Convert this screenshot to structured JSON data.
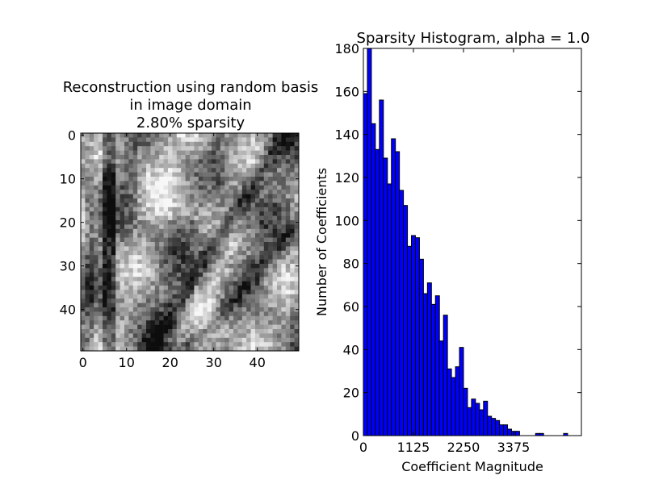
{
  "chart_data": [
    {
      "type": "heatmap",
      "title_lines": [
        "Reconstruction using random basis",
        "in image domain",
        "2.80% sparsity"
      ],
      "xticks": [
        0,
        10,
        20,
        30,
        40
      ],
      "yticks": [
        0,
        10,
        20,
        30,
        40
      ],
      "xlim": [
        -0.5,
        49.5
      ],
      "ylim": [
        49.5,
        -0.5
      ],
      "colormap": "gray"
    },
    {
      "type": "bar",
      "title": "Sparsity Histogram, alpha = 1.0",
      "xlabel": "Coefficient Magnitude",
      "ylabel": "Number of Coefficients",
      "xlim": [
        0,
        4900
      ],
      "ylim": [
        0,
        180
      ],
      "xticks": [
        0,
        1125,
        2250,
        3375
      ],
      "yticks": [
        0,
        20,
        40,
        60,
        80,
        100,
        120,
        140,
        160,
        180
      ],
      "bin_width": 90,
      "values": [
        159,
        180,
        145,
        133,
        156,
        129,
        117,
        138,
        132,
        114,
        107,
        88,
        93,
        92,
        82,
        66,
        71,
        61,
        65,
        44,
        56,
        31,
        27,
        32,
        41,
        22,
        13,
        17,
        15,
        12,
        16,
        9,
        8,
        7,
        5,
        5,
        3,
        2,
        2,
        0,
        0,
        0,
        0,
        1,
        1,
        0,
        0,
        0,
        0,
        0,
        1
      ],
      "bar_color": "#0000ff"
    }
  ]
}
